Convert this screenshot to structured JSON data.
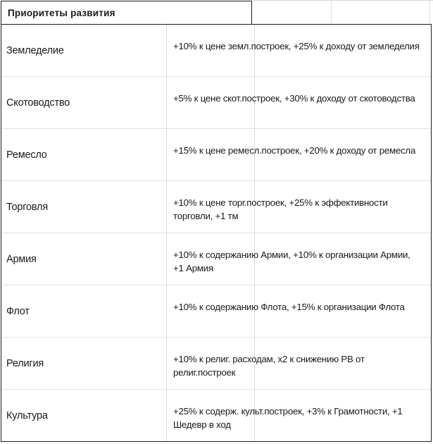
{
  "header": {
    "title": "Приоритеты развития"
  },
  "rows": [
    {
      "name": "Земледелие",
      "effect": " +10% к цене земл.построек, +25% к доходу от земледелия"
    },
    {
      "name": "Скотоводство",
      "effect": " +5% к цене скот.построек, +30% к доходу от скотоводства"
    },
    {
      "name": "Ремесло",
      "effect": " +15% к цене ремесл.построек, +20% к доходу от ремесла"
    },
    {
      "name": "Торговля",
      "effect": " +10% к цене торг.построек, +25% к эффективности торговли, +1 тм"
    },
    {
      "name": "Армия",
      "effect": " +10% к содержанию Армии, +10% к организации Армии, +1 Армия"
    },
    {
      "name": "Флот",
      "effect": " +10% к содержанию Флота, +15% к организации Флота"
    },
    {
      "name": "Религия",
      "effect": " +10% к религ. расходам, x2 к снижению РВ от религ.построек"
    },
    {
      "name": "Культура",
      "effect": " +25% к содерж. культ.построек, +3% к Грамотности, +1 Шедевр в ход"
    }
  ]
}
